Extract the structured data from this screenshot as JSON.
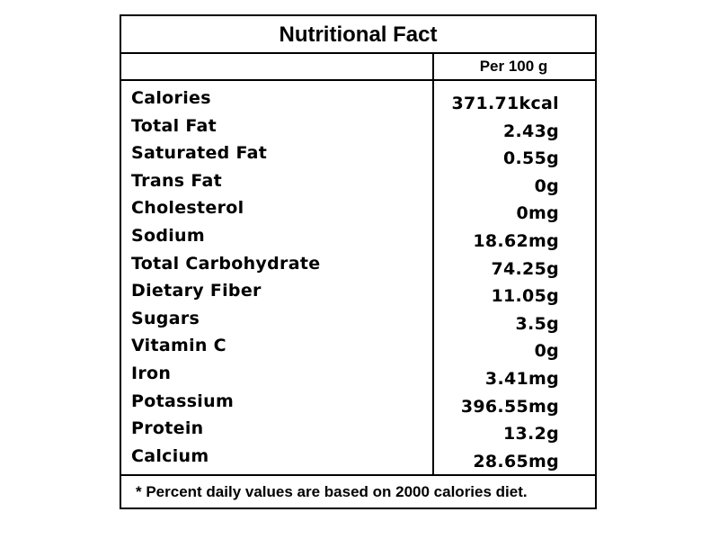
{
  "label": {
    "title": "Nutritional Fact",
    "column_header": "Per 100 g",
    "rows": [
      {
        "nutrient": "Calories",
        "amount": "371.71kcal"
      },
      {
        "nutrient": "Total Fat",
        "amount": "2.43g"
      },
      {
        "nutrient": "Saturated Fat",
        "amount": "0.55g"
      },
      {
        "nutrient": "Trans Fat",
        "amount": "0g"
      },
      {
        "nutrient": "Cholesterol",
        "amount": "0mg"
      },
      {
        "nutrient": "Sodium",
        "amount": "18.62mg"
      },
      {
        "nutrient": "Total Carbohydrate",
        "amount": "74.25g"
      },
      {
        "nutrient": "Dietary Fiber",
        "amount": "11.05g"
      },
      {
        "nutrient": "Sugars",
        "amount": "3.5g"
      },
      {
        "nutrient": "Vitamin C",
        "amount": "0g"
      },
      {
        "nutrient": "Iron",
        "amount": "3.41mg"
      },
      {
        "nutrient": "Potassium",
        "amount": "396.55mg"
      },
      {
        "nutrient": "Protein",
        "amount": "13.2g"
      },
      {
        "nutrient": "Calcium",
        "amount": "28.65mg"
      }
    ],
    "footnote": "*  Percent daily values are based on 2000 calories diet."
  }
}
